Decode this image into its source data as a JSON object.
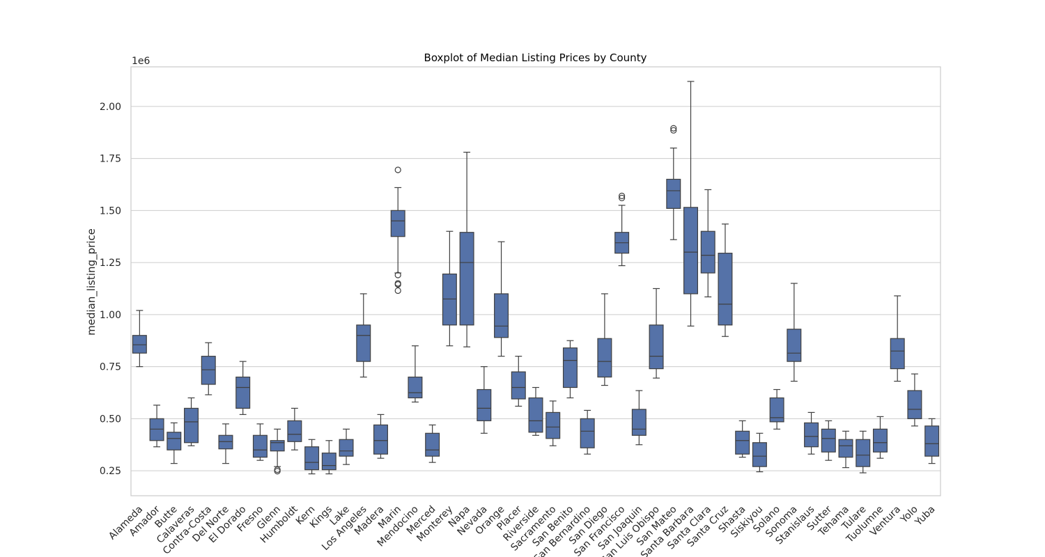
{
  "chart_data": {
    "type": "boxplot",
    "title": "Boxplot of Median Listing Prices by County",
    "xlabel": "",
    "ylabel": "median_listing_price",
    "y_scale_label": "1e6",
    "ylim": [
      130000,
      2190000
    ],
    "y_ticks": [
      250000,
      500000,
      750000,
      1000000,
      1250000,
      1500000,
      1750000,
      2000000
    ],
    "y_tick_labels": [
      "0.25",
      "0.50",
      "0.75",
      "1.00",
      "1.25",
      "1.50",
      "1.75",
      "2.00"
    ],
    "grid": "horizontal",
    "box_color": "#5572a8",
    "edge_color": "#3f3f3f",
    "categories": [
      "Alameda",
      "Amador",
      "Butte",
      "Calaveras",
      "Contra-Costa",
      "Del Norte",
      "El Dorado",
      "Fresno",
      "Glenn",
      "Humboldt",
      "Kern",
      "Kings",
      "Lake",
      "Los Angeles",
      "Madera",
      "Marin",
      "Mendocino",
      "Merced",
      "Monterey",
      "Napa",
      "Nevada",
      "Orange",
      "Placer",
      "Riverside",
      "Sacramento",
      "San Benito",
      "San Bernardino",
      "San Diego",
      "San Francisco",
      "San Joaquin",
      "San Luis Obispo",
      "San Mateo",
      "Santa Barbara",
      "Santa Clara",
      "Santa Cruz",
      "Shasta",
      "Siskiyou",
      "Solano",
      "Sonoma",
      "Stanislaus",
      "Sutter",
      "Tehama",
      "Tulare",
      "Tuolumne",
      "Ventura",
      "Yolo",
      "Yuba"
    ],
    "boxes": [
      {
        "whislo": 750000,
        "q1": 815000,
        "med": 855000,
        "q3": 900000,
        "whishi": 1020000,
        "fliers": []
      },
      {
        "whislo": 365000,
        "q1": 395000,
        "med": 450000,
        "q3": 500000,
        "whishi": 565000,
        "fliers": []
      },
      {
        "whislo": 285000,
        "q1": 350000,
        "med": 405000,
        "q3": 435000,
        "whishi": 480000,
        "fliers": []
      },
      {
        "whislo": 370000,
        "q1": 385000,
        "med": 485000,
        "q3": 550000,
        "whishi": 600000,
        "fliers": []
      },
      {
        "whislo": 615000,
        "q1": 665000,
        "med": 735000,
        "q3": 800000,
        "whishi": 865000,
        "fliers": []
      },
      {
        "whislo": 285000,
        "q1": 355000,
        "med": 390000,
        "q3": 420000,
        "whishi": 475000,
        "fliers": []
      },
      {
        "whislo": 520000,
        "q1": 550000,
        "med": 650000,
        "q3": 700000,
        "whishi": 775000,
        "fliers": []
      },
      {
        "whislo": 300000,
        "q1": 315000,
        "med": 350000,
        "q3": 420000,
        "whishi": 475000,
        "fliers": []
      },
      {
        "whislo": 270000,
        "q1": 345000,
        "med": 385000,
        "q3": 395000,
        "whishi": 450000,
        "fliers": [
          255000,
          248000
        ]
      },
      {
        "whislo": 350000,
        "q1": 390000,
        "med": 425000,
        "q3": 490000,
        "whishi": 550000,
        "fliers": []
      },
      {
        "whislo": 235000,
        "q1": 255000,
        "med": 290000,
        "q3": 365000,
        "whishi": 400000,
        "fliers": []
      },
      {
        "whislo": 235000,
        "q1": 255000,
        "med": 275000,
        "q3": 335000,
        "whishi": 395000,
        "fliers": []
      },
      {
        "whislo": 280000,
        "q1": 320000,
        "med": 345000,
        "q3": 400000,
        "whishi": 450000,
        "fliers": []
      },
      {
        "whislo": 700000,
        "q1": 775000,
        "med": 900000,
        "q3": 950000,
        "whishi": 1100000,
        "fliers": []
      },
      {
        "whislo": 310000,
        "q1": 330000,
        "med": 395000,
        "q3": 470000,
        "whishi": 520000,
        "fliers": []
      },
      {
        "whislo": 1200000,
        "q1": 1375000,
        "med": 1450000,
        "q3": 1500000,
        "whishi": 1610000,
        "fliers": [
          1695000,
          1190000,
          1150000,
          1145000,
          1115000
        ]
      },
      {
        "whislo": 580000,
        "q1": 600000,
        "med": 625000,
        "q3": 700000,
        "whishi": 850000,
        "fliers": []
      },
      {
        "whislo": 290000,
        "q1": 320000,
        "med": 350000,
        "q3": 430000,
        "whishi": 470000,
        "fliers": []
      },
      {
        "whislo": 850000,
        "q1": 950000,
        "med": 1075000,
        "q3": 1195000,
        "whishi": 1400000,
        "fliers": []
      },
      {
        "whislo": 845000,
        "q1": 950000,
        "med": 1250000,
        "q3": 1395000,
        "whishi": 1780000,
        "fliers": []
      },
      {
        "whislo": 430000,
        "q1": 490000,
        "med": 550000,
        "q3": 640000,
        "whishi": 750000,
        "fliers": []
      },
      {
        "whislo": 800000,
        "q1": 890000,
        "med": 945000,
        "q3": 1100000,
        "whishi": 1350000,
        "fliers": []
      },
      {
        "whislo": 560000,
        "q1": 595000,
        "med": 650000,
        "q3": 725000,
        "whishi": 800000,
        "fliers": []
      },
      {
        "whislo": 420000,
        "q1": 435000,
        "med": 490000,
        "q3": 600000,
        "whishi": 650000,
        "fliers": []
      },
      {
        "whislo": 370000,
        "q1": 405000,
        "med": 460000,
        "q3": 530000,
        "whishi": 585000,
        "fliers": []
      },
      {
        "whislo": 600000,
        "q1": 650000,
        "med": 780000,
        "q3": 840000,
        "whishi": 875000,
        "fliers": []
      },
      {
        "whislo": 330000,
        "q1": 360000,
        "med": 440000,
        "q3": 500000,
        "whishi": 540000,
        "fliers": []
      },
      {
        "whislo": 660000,
        "q1": 700000,
        "med": 775000,
        "q3": 885000,
        "whishi": 1100000,
        "fliers": []
      },
      {
        "whislo": 1235000,
        "q1": 1295000,
        "med": 1345000,
        "q3": 1395000,
        "whishi": 1525000,
        "fliers": [
          1570000,
          1560000
        ]
      },
      {
        "whislo": 375000,
        "q1": 420000,
        "med": 450000,
        "q3": 545000,
        "whishi": 635000,
        "fliers": []
      },
      {
        "whislo": 695000,
        "q1": 740000,
        "med": 800000,
        "q3": 950000,
        "whishi": 1125000,
        "fliers": []
      },
      {
        "whislo": 1360000,
        "q1": 1510000,
        "med": 1595000,
        "q3": 1650000,
        "whishi": 1800000,
        "fliers": [
          1895000,
          1885000
        ]
      },
      {
        "whislo": 945000,
        "q1": 1100000,
        "med": 1300000,
        "q3": 1515000,
        "whishi": 2120000,
        "fliers": []
      },
      {
        "whislo": 1085000,
        "q1": 1200000,
        "med": 1285000,
        "q3": 1400000,
        "whishi": 1600000,
        "fliers": []
      },
      {
        "whislo": 895000,
        "q1": 950000,
        "med": 1050000,
        "q3": 1295000,
        "whishi": 1435000,
        "fliers": []
      },
      {
        "whislo": 315000,
        "q1": 330000,
        "med": 395000,
        "q3": 440000,
        "whishi": 490000,
        "fliers": []
      },
      {
        "whislo": 245000,
        "q1": 270000,
        "med": 320000,
        "q3": 385000,
        "whishi": 430000,
        "fliers": []
      },
      {
        "whislo": 450000,
        "q1": 485000,
        "med": 505000,
        "q3": 600000,
        "whishi": 640000,
        "fliers": []
      },
      {
        "whislo": 680000,
        "q1": 775000,
        "med": 815000,
        "q3": 930000,
        "whishi": 1150000,
        "fliers": []
      },
      {
        "whislo": 330000,
        "q1": 365000,
        "med": 415000,
        "q3": 480000,
        "whishi": 530000,
        "fliers": []
      },
      {
        "whislo": 300000,
        "q1": 340000,
        "med": 405000,
        "q3": 450000,
        "whishi": 490000,
        "fliers": []
      },
      {
        "whislo": 265000,
        "q1": 315000,
        "med": 370000,
        "q3": 400000,
        "whishi": 440000,
        "fliers": []
      },
      {
        "whislo": 240000,
        "q1": 270000,
        "med": 325000,
        "q3": 400000,
        "whishi": 440000,
        "fliers": []
      },
      {
        "whislo": 310000,
        "q1": 340000,
        "med": 385000,
        "q3": 450000,
        "whishi": 510000,
        "fliers": []
      },
      {
        "whislo": 680000,
        "q1": 740000,
        "med": 825000,
        "q3": 885000,
        "whishi": 1090000,
        "fliers": []
      },
      {
        "whislo": 465000,
        "q1": 500000,
        "med": 545000,
        "q3": 635000,
        "whishi": 715000,
        "fliers": []
      },
      {
        "whislo": 285000,
        "q1": 320000,
        "med": 380000,
        "q3": 465000,
        "whishi": 500000,
        "fliers": []
      }
    ]
  }
}
